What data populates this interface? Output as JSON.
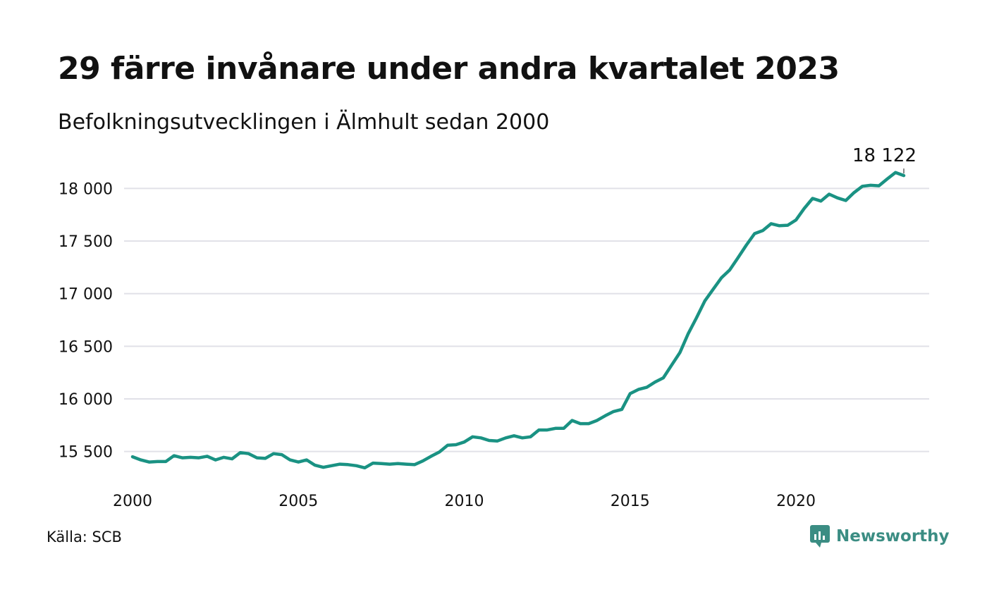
{
  "title": "29 färre invånare under andra kvartalet 2023",
  "subtitle": "Befolkningsutvecklingen i Älmhult sedan 2000",
  "source": "Källa: SCB",
  "brand": {
    "name": "Newsworthy",
    "icon": "newsworthy-logo-icon",
    "color": "#3b8d83"
  },
  "colors": {
    "line": "#1a9283",
    "grid": "#e1e1e8",
    "text": "#111111"
  },
  "chart_data": {
    "type": "line",
    "x_start": 2000.0,
    "x_step": 0.25,
    "xlim": [
      2000,
      2024.2
    ],
    "ylim": [
      15250,
      18250
    ],
    "grid": true,
    "x_ticks": [
      2000,
      2005,
      2010,
      2015,
      2020
    ],
    "x_tick_labels": [
      "2000",
      "2005",
      "2010",
      "2015",
      "2020"
    ],
    "y_ticks": [
      15500,
      16000,
      16500,
      17000,
      17500,
      18000
    ],
    "y_tick_labels": [
      "15 500",
      "16 000",
      "16 500",
      "17 000",
      "17 500",
      "18 000"
    ],
    "last_label": "18 122",
    "series": [
      {
        "values": [
          15450,
          15420,
          15400,
          15405,
          15405,
          15460,
          15440,
          15445,
          15440,
          15455,
          15420,
          15445,
          15430,
          15490,
          15480,
          15440,
          15435,
          15480,
          15470,
          15420,
          15400,
          15420,
          15370,
          15350,
          15365,
          15380,
          15375,
          15365,
          15345,
          15390,
          15385,
          15380,
          15385,
          15380,
          15375,
          15410,
          15455,
          15495,
          15560,
          15565,
          15590,
          15640,
          15630,
          15605,
          15600,
          15630,
          15650,
          15630,
          15640,
          15705,
          15705,
          15720,
          15720,
          15795,
          15765,
          15765,
          15795,
          15840,
          15880,
          15900,
          16050,
          16090,
          16110,
          16160,
          16200,
          16320,
          16440,
          16620,
          16770,
          16930,
          17040,
          17150,
          17225,
          17340,
          17460,
          17570,
          17600,
          17665,
          17645,
          17650,
          17700,
          17810,
          17905,
          17880,
          17945,
          17910,
          17885,
          17960,
          18020,
          18030,
          18025,
          18090,
          18151,
          18122
        ]
      }
    ]
  }
}
